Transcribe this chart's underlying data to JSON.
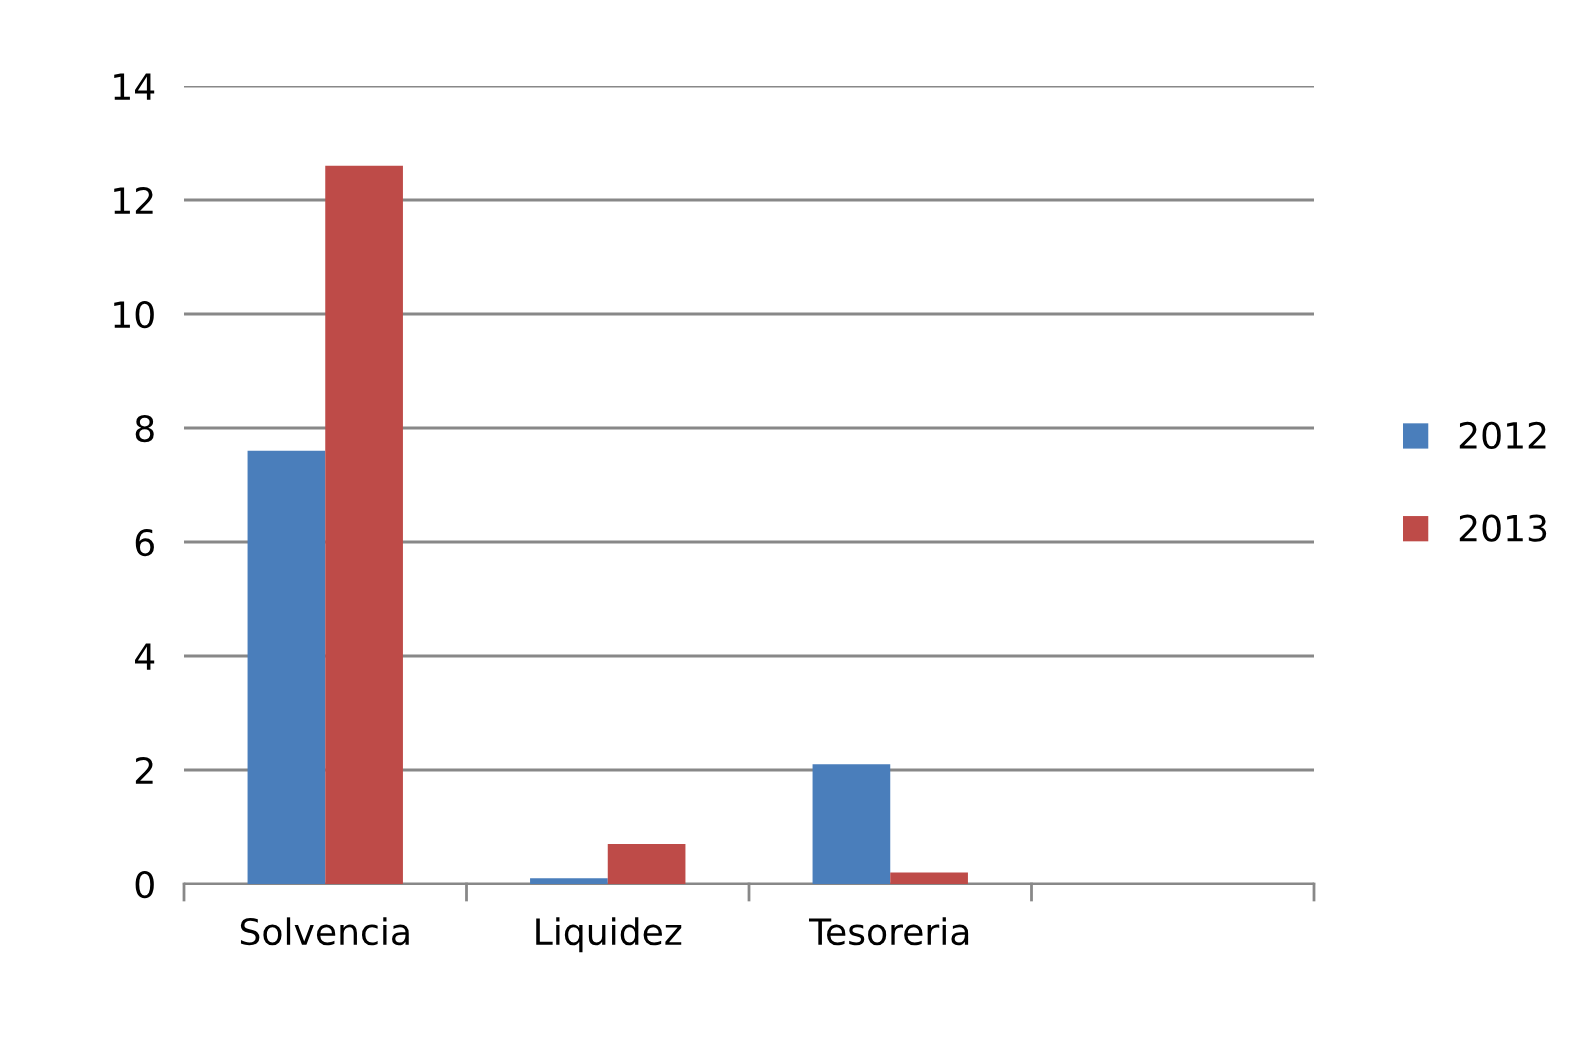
{
  "chart_data": {
    "type": "bar",
    "categories": [
      "Solvencia",
      "Liquidez",
      "Tesoreria",
      null
    ],
    "series": [
      {
        "name": "2012",
        "color": "#4a7ebb",
        "values": [
          7.6,
          0.1,
          2.1,
          null
        ]
      },
      {
        "name": "2013",
        "color": "#be4b48",
        "values": [
          12.6,
          0.7,
          0.2,
          null
        ]
      }
    ],
    "ylim": [
      0,
      14
    ],
    "yticks": [
      0,
      2,
      4,
      6,
      8,
      10,
      12,
      14
    ],
    "grid": "y",
    "legend": "right"
  }
}
